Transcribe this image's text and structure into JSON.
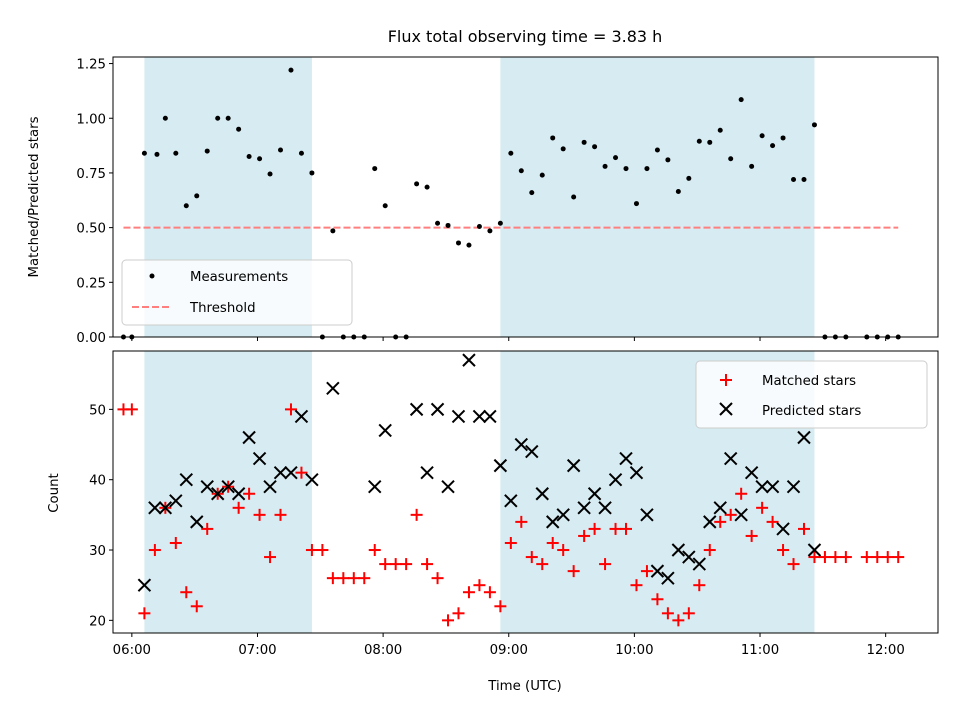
{
  "chart_data": [
    {
      "type": "scatter",
      "title": "Flux total observing time = 3.83 h",
      "ylabel": "Matched/Predicted stars",
      "xlabel": "",
      "xlim": [
        "05:51",
        "12:25"
      ],
      "ylim": [
        0,
        1.28
      ],
      "yticks": [
        "0.00",
        "0.25",
        "0.50",
        "0.75",
        "1.00",
        "1.25"
      ],
      "shaded_intervals": [
        [
          "06:06",
          "07:26"
        ],
        [
          "08:56",
          "11:26"
        ]
      ],
      "shade_color": "#add8e6",
      "legend": {
        "placement": "lower-left",
        "entries": [
          "Measurements",
          "Threshold"
        ]
      },
      "series": [
        {
          "name": "Measurements",
          "marker": "dot",
          "color": "#000000",
          "points": [
            [
              "05:56",
              0.0
            ],
            [
              "06:00",
              0.0
            ],
            [
              "06:06",
              0.84
            ],
            [
              "06:12",
              0.835
            ],
            [
              "06:16",
              1.0
            ],
            [
              "06:21",
              0.84
            ],
            [
              "06:26",
              0.6
            ],
            [
              "06:31",
              0.645
            ],
            [
              "06:36",
              0.85
            ],
            [
              "06:41",
              1.0
            ],
            [
              "06:46",
              1.0
            ],
            [
              "06:51",
              0.95
            ],
            [
              "06:56",
              0.825
            ],
            [
              "07:01",
              0.815
            ],
            [
              "07:06",
              0.745
            ],
            [
              "07:11",
              0.855
            ],
            [
              "07:16",
              1.22
            ],
            [
              "07:21",
              0.84
            ],
            [
              "07:26",
              0.75
            ],
            [
              "07:31",
              0.0
            ],
            [
              "07:36",
              0.485
            ],
            [
              "07:41",
              0.0
            ],
            [
              "07:46",
              0.0
            ],
            [
              "07:51",
              0.0
            ],
            [
              "07:56",
              0.77
            ],
            [
              "08:01",
              0.6
            ],
            [
              "08:06",
              0.0
            ],
            [
              "08:11",
              0.0
            ],
            [
              "08:16",
              0.7
            ],
            [
              "08:21",
              0.685
            ],
            [
              "08:26",
              0.52
            ],
            [
              "08:31",
              0.51
            ],
            [
              "08:36",
              0.43
            ],
            [
              "08:41",
              0.42
            ],
            [
              "08:46",
              0.505
            ],
            [
              "08:51",
              0.485
            ],
            [
              "08:56",
              0.52
            ],
            [
              "09:01",
              0.84
            ],
            [
              "09:06",
              0.76
            ],
            [
              "09:11",
              0.66
            ],
            [
              "09:16",
              0.74
            ],
            [
              "09:21",
              0.91
            ],
            [
              "09:26",
              0.86
            ],
            [
              "09:31",
              0.64
            ],
            [
              "09:36",
              0.89
            ],
            [
              "09:41",
              0.87
            ],
            [
              "09:46",
              0.78
            ],
            [
              "09:51",
              0.82
            ],
            [
              "09:56",
              0.77
            ],
            [
              "10:01",
              0.61
            ],
            [
              "10:06",
              0.77
            ],
            [
              "10:11",
              0.855
            ],
            [
              "10:16",
              0.81
            ],
            [
              "10:21",
              0.665
            ],
            [
              "10:26",
              0.725
            ],
            [
              "10:31",
              0.895
            ],
            [
              "10:36",
              0.89
            ],
            [
              "10:41",
              0.945
            ],
            [
              "10:46",
              0.815
            ],
            [
              "10:51",
              1.085
            ],
            [
              "10:56",
              0.78
            ],
            [
              "11:01",
              0.92
            ],
            [
              "11:06",
              0.875
            ],
            [
              "11:11",
              0.91
            ],
            [
              "11:16",
              0.72
            ],
            [
              "11:21",
              0.72
            ],
            [
              "11:26",
              0.97
            ],
            [
              "11:31",
              0.0
            ],
            [
              "11:36",
              0.0
            ],
            [
              "11:41",
              0.0
            ],
            [
              "11:51",
              0.0
            ],
            [
              "11:56",
              0.0
            ],
            [
              "12:01",
              0.0
            ],
            [
              "12:06",
              0.0
            ]
          ]
        },
        {
          "name": "Threshold",
          "style": "dashed-line",
          "color": "#ff7f7f",
          "points": [
            [
              "05:56",
              0.5
            ],
            [
              "12:06",
              0.5
            ]
          ]
        }
      ]
    },
    {
      "type": "scatter",
      "ylabel": "Count",
      "xlabel": "Time (UTC)",
      "xlim": [
        "05:51",
        "12:25"
      ],
      "ylim": [
        18.2,
        58.3
      ],
      "xticks": [
        "06:00",
        "07:00",
        "08:00",
        "09:00",
        "10:00",
        "11:00",
        "12:00"
      ],
      "yticks": [
        "20",
        "30",
        "40",
        "50"
      ],
      "shaded_intervals": [
        [
          "06:06",
          "07:26"
        ],
        [
          "08:56",
          "11:26"
        ]
      ],
      "shade_color": "#add8e6",
      "legend": {
        "placement": "top-right",
        "entries": [
          "Matched stars",
          "Predicted stars"
        ]
      },
      "series": [
        {
          "name": "Matched stars",
          "marker": "plus",
          "color": "#ff0000",
          "points": [
            [
              "05:56",
              50
            ],
            [
              "06:00",
              50
            ],
            [
              "06:06",
              21
            ],
            [
              "06:11",
              30
            ],
            [
              "06:16",
              36
            ],
            [
              "06:21",
              31
            ],
            [
              "06:26",
              24
            ],
            [
              "06:31",
              22
            ],
            [
              "06:36",
              33
            ],
            [
              "06:41",
              38
            ],
            [
              "06:46",
              39
            ],
            [
              "06:51",
              36
            ],
            [
              "06:56",
              38
            ],
            [
              "07:01",
              35
            ],
            [
              "07:06",
              29
            ],
            [
              "07:11",
              35
            ],
            [
              "07:16",
              50
            ],
            [
              "07:21",
              41
            ],
            [
              "07:26",
              30
            ],
            [
              "07:31",
              30
            ],
            [
              "07:36",
              26
            ],
            [
              "07:41",
              26
            ],
            [
              "07:46",
              26
            ],
            [
              "07:51",
              26
            ],
            [
              "07:56",
              30
            ],
            [
              "08:01",
              28
            ],
            [
              "08:06",
              28
            ],
            [
              "08:11",
              28
            ],
            [
              "08:16",
              35
            ],
            [
              "08:21",
              28
            ],
            [
              "08:26",
              26
            ],
            [
              "08:31",
              20
            ],
            [
              "08:36",
              21
            ],
            [
              "08:41",
              24
            ],
            [
              "08:46",
              25
            ],
            [
              "08:51",
              24
            ],
            [
              "08:56",
              22
            ],
            [
              "09:01",
              31
            ],
            [
              "09:06",
              34
            ],
            [
              "09:11",
              29
            ],
            [
              "09:16",
              28
            ],
            [
              "09:21",
              31
            ],
            [
              "09:26",
              30
            ],
            [
              "09:31",
              27
            ],
            [
              "09:36",
              32
            ],
            [
              "09:41",
              33
            ],
            [
              "09:46",
              28
            ],
            [
              "09:51",
              33
            ],
            [
              "09:56",
              33
            ],
            [
              "10:01",
              25
            ],
            [
              "10:06",
              27
            ],
            [
              "10:11",
              23
            ],
            [
              "10:16",
              21
            ],
            [
              "10:21",
              20
            ],
            [
              "10:26",
              21
            ],
            [
              "10:31",
              25
            ],
            [
              "10:36",
              30
            ],
            [
              "10:41",
              34
            ],
            [
              "10:46",
              35
            ],
            [
              "10:51",
              38
            ],
            [
              "10:56",
              32
            ],
            [
              "11:01",
              36
            ],
            [
              "11:06",
              34
            ],
            [
              "11:11",
              30
            ],
            [
              "11:16",
              28
            ],
            [
              "11:21",
              33
            ],
            [
              "11:26",
              29
            ],
            [
              "11:31",
              29
            ],
            [
              "11:36",
              29
            ],
            [
              "11:41",
              29
            ],
            [
              "11:51",
              29
            ],
            [
              "11:56",
              29
            ],
            [
              "12:01",
              29
            ],
            [
              "12:06",
              29
            ]
          ]
        },
        {
          "name": "Predicted stars",
          "marker": "x",
          "color": "#000000",
          "points": [
            [
              "06:06",
              25
            ],
            [
              "06:11",
              36
            ],
            [
              "06:16",
              36
            ],
            [
              "06:21",
              37
            ],
            [
              "06:26",
              40
            ],
            [
              "06:31",
              34
            ],
            [
              "06:36",
              39
            ],
            [
              "06:41",
              38
            ],
            [
              "06:46",
              39
            ],
            [
              "06:51",
              38
            ],
            [
              "06:56",
              46
            ],
            [
              "07:01",
              43
            ],
            [
              "07:06",
              39
            ],
            [
              "07:11",
              41
            ],
            [
              "07:16",
              41
            ],
            [
              "07:21",
              49
            ],
            [
              "07:26",
              40
            ],
            [
              "07:36",
              53
            ],
            [
              "07:56",
              39
            ],
            [
              "08:01",
              47
            ],
            [
              "08:16",
              50
            ],
            [
              "08:21",
              41
            ],
            [
              "08:26",
              50
            ],
            [
              "08:31",
              39
            ],
            [
              "08:36",
              49
            ],
            [
              "08:41",
              57
            ],
            [
              "08:46",
              49
            ],
            [
              "08:51",
              49
            ],
            [
              "08:56",
              42
            ],
            [
              "09:01",
              37
            ],
            [
              "09:06",
              45
            ],
            [
              "09:11",
              44
            ],
            [
              "09:16",
              38
            ],
            [
              "09:21",
              34
            ],
            [
              "09:26",
              35
            ],
            [
              "09:31",
              42
            ],
            [
              "09:36",
              36
            ],
            [
              "09:41",
              38
            ],
            [
              "09:46",
              36
            ],
            [
              "09:51",
              40
            ],
            [
              "09:56",
              43
            ],
            [
              "10:01",
              41
            ],
            [
              "10:06",
              35
            ],
            [
              "10:11",
              27
            ],
            [
              "10:16",
              26
            ],
            [
              "10:21",
              30
            ],
            [
              "10:26",
              29
            ],
            [
              "10:31",
              28
            ],
            [
              "10:36",
              34
            ],
            [
              "10:41",
              36
            ],
            [
              "10:46",
              43
            ],
            [
              "10:51",
              35
            ],
            [
              "10:56",
              41
            ],
            [
              "11:01",
              39
            ],
            [
              "11:06",
              39
            ],
            [
              "11:11",
              33
            ],
            [
              "11:16",
              39
            ],
            [
              "11:21",
              46
            ],
            [
              "11:26",
              30
            ]
          ]
        }
      ]
    }
  ]
}
